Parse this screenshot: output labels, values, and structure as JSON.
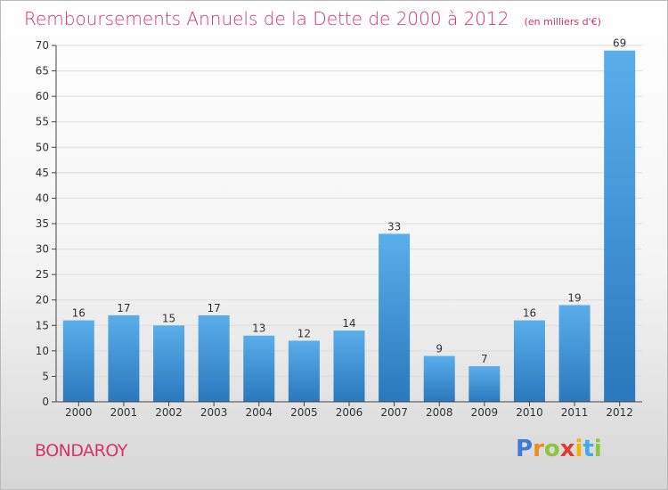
{
  "title": "Remboursements Annuels de la Dette de 2000 à 2012",
  "unit_note": "(en milliers d'€)",
  "commune": "BONDAROY",
  "brand": {
    "letters": [
      "P",
      "r",
      "o",
      "x",
      "i",
      "t",
      "i"
    ],
    "colors": [
      "#3d7bd8",
      "#f08a1c",
      "#8cc63f",
      "#e03c31",
      "#f0b400",
      "#3fa9f5",
      "#8cc63f"
    ]
  },
  "colors": {
    "accent": "#d6336c",
    "bar_top": "#5aaeea",
    "bar_bottom": "#2a78bd"
  },
  "chart_data": {
    "type": "bar",
    "categories": [
      "2000",
      "2001",
      "2002",
      "2003",
      "2004",
      "2005",
      "2006",
      "2007",
      "2008",
      "2009",
      "2010",
      "2011",
      "2012"
    ],
    "values": [
      16,
      17,
      15,
      17,
      13,
      12,
      14,
      33,
      9,
      7,
      16,
      19,
      69
    ],
    "ylim": [
      0,
      70
    ],
    "yticks": [
      0,
      5,
      10,
      15,
      20,
      25,
      30,
      35,
      40,
      45,
      50,
      55,
      60,
      65,
      70
    ],
    "grid": true
  }
}
